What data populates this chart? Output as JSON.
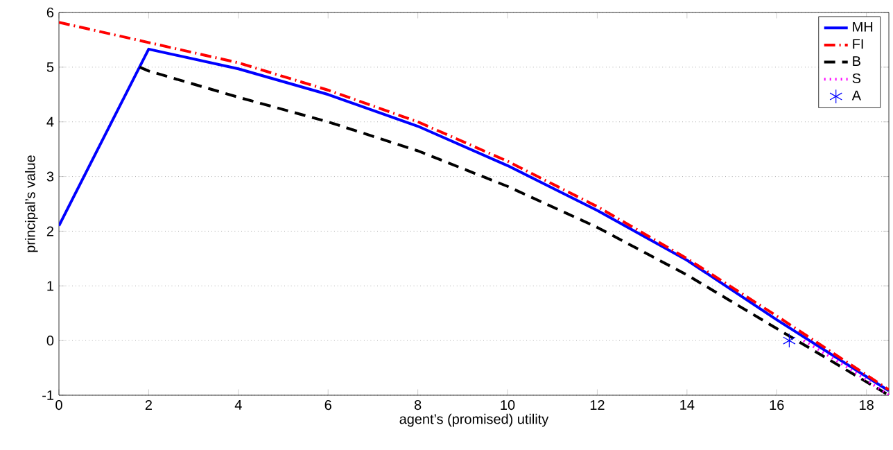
{
  "chart_data": {
    "type": "line",
    "xlabel": "agent’s (promised) utility",
    "ylabel": "principal’s value",
    "xlim": [
      0,
      18.5
    ],
    "xticks": [
      0,
      2,
      4,
      6,
      8,
      10,
      12,
      14,
      16,
      18
    ],
    "ylim": [
      -1,
      6
    ],
    "yticks": [
      -1,
      0,
      1,
      2,
      3,
      4,
      5,
      6
    ],
    "grid": "y",
    "legend": "top right",
    "series": [
      {
        "name": "MH",
        "color": "#0000ff",
        "line_style": "solid",
        "marker": "none",
        "x": [
          0,
          2,
          4,
          6,
          8,
          10,
          12,
          14,
          16,
          18.5
        ],
        "values": [
          2.1,
          5.33,
          4.97,
          4.5,
          3.92,
          3.2,
          2.38,
          1.47,
          0.38,
          -0.92
        ]
      },
      {
        "name": "FI",
        "color": "#ff0000",
        "line_style": "dashdot",
        "marker": "none",
        "x": [
          0,
          2,
          4,
          6,
          8,
          10,
          12,
          14,
          16,
          18.5
        ],
        "values": [
          5.82,
          5.45,
          5.08,
          4.58,
          4.0,
          3.28,
          2.45,
          1.5,
          0.45,
          -0.9
        ]
      },
      {
        "name": "B",
        "color": "#000000",
        "line_style": "dashed",
        "marker": "none",
        "x": [
          1.8,
          2,
          4,
          6,
          8,
          10,
          12,
          14,
          16,
          18.5
        ],
        "values": [
          5.0,
          4.93,
          4.45,
          4.0,
          3.47,
          2.82,
          2.07,
          1.2,
          0.22,
          -1.0
        ]
      },
      {
        "name": "S",
        "color": "#ff00ff",
        "line_style": "dotted",
        "marker": "none",
        "x": [
          16.6,
          17.5,
          18.5
        ],
        "values": [
          0.0,
          -0.45,
          -1.0
        ]
      },
      {
        "name": "A",
        "type": "scatter",
        "color": "#0000ff",
        "marker": "cross",
        "x": [
          16.28
        ],
        "values": [
          0.0
        ]
      }
    ]
  }
}
